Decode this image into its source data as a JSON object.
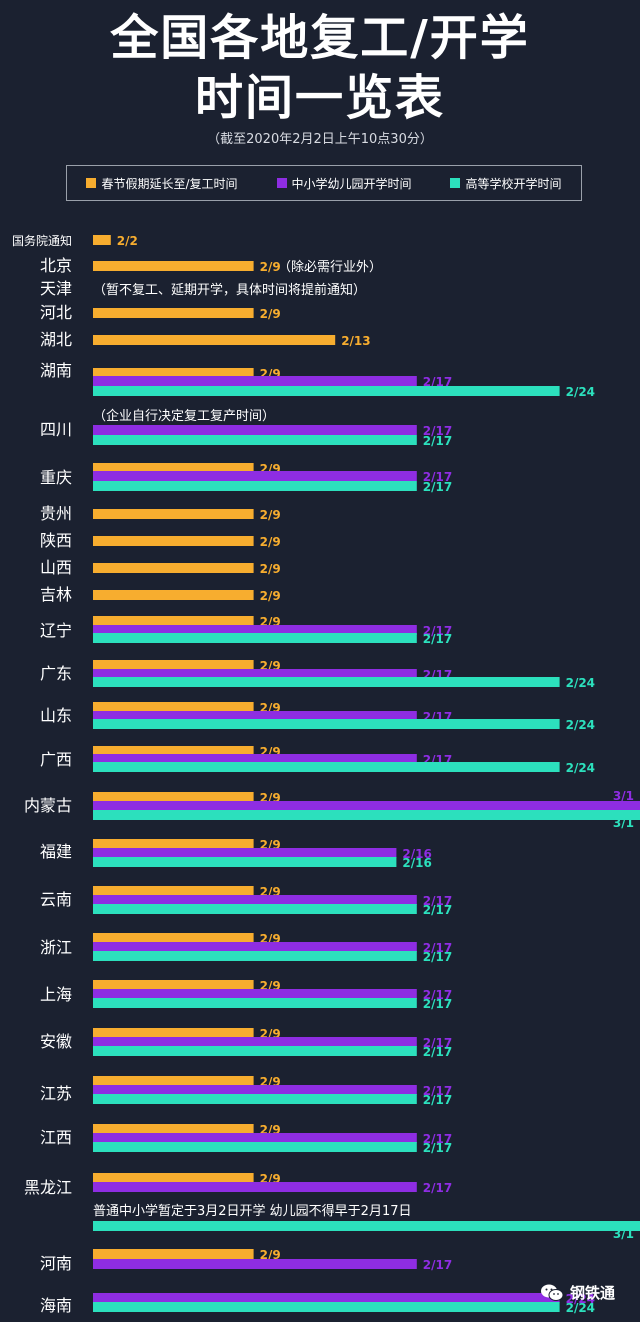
{
  "header": {
    "title_line1": "全国各地复工/开学",
    "title_line2": "时间一览表",
    "subtitle": "（截至2020年2月2日上午10点30分）"
  },
  "legend": {
    "items": [
      {
        "label": "春节假期延长至/复工时间",
        "color": "#f7ad2f"
      },
      {
        "label": "中小学幼儿园开学时间",
        "color": "#8e2de2"
      },
      {
        "label": "高等学校开学时间",
        "color": "#2ce0bd"
      }
    ]
  },
  "watermark": {
    "text": "钢铁通"
  },
  "chart_data": {
    "type": "bar",
    "orientation": "horizontal",
    "title": "全国各地复工/开学时间一览表",
    "series": [
      {
        "name": "春节假期延长至/复工时间",
        "color": "#f7ad2f"
      },
      {
        "name": "中小学幼儿园开学时间",
        "color": "#8e2de2"
      },
      {
        "name": "高等学校开学时间",
        "color": "#2ce0bd"
      }
    ],
    "rows": [
      {
        "region": "国务院通知",
        "work": "2/2",
        "k12": null,
        "college": null,
        "note": ""
      },
      {
        "region": "北京",
        "work": "2/9",
        "k12": null,
        "college": null,
        "note": "（除必需行业外）"
      },
      {
        "region": "天津",
        "work": null,
        "k12": null,
        "college": null,
        "note": "（暂不复工、延期开学，具体时间将提前通知）"
      },
      {
        "region": "河北",
        "work": "2/9",
        "k12": null,
        "college": null,
        "note": ""
      },
      {
        "region": "湖北",
        "work": "2/13",
        "k12": null,
        "college": null,
        "note": ""
      },
      {
        "region": "湖南",
        "work": "2/9",
        "k12": "2/17",
        "college": "2/24",
        "note": ""
      },
      {
        "region": "四川",
        "work": null,
        "k12": "2/17",
        "college": "2/17",
        "note": "（企业自行决定复工复产时间）"
      },
      {
        "region": "重庆",
        "work": "2/9",
        "k12": "2/17",
        "college": "2/17",
        "note": ""
      },
      {
        "region": "贵州",
        "work": "2/9",
        "k12": null,
        "college": null,
        "note": ""
      },
      {
        "region": "陕西",
        "work": "2/9",
        "k12": null,
        "college": null,
        "note": ""
      },
      {
        "region": "山西",
        "work": "2/9",
        "k12": null,
        "college": null,
        "note": ""
      },
      {
        "region": "吉林",
        "work": "2/9",
        "k12": null,
        "college": null,
        "note": ""
      },
      {
        "region": "辽宁",
        "work": "2/9",
        "k12": "2/17",
        "college": "2/17",
        "note": ""
      },
      {
        "region": "广东",
        "work": "2/9",
        "k12": "2/17",
        "college": "2/24",
        "note": ""
      },
      {
        "region": "山东",
        "work": "2/9",
        "k12": "2/17",
        "college": "2/24",
        "note": ""
      },
      {
        "region": "广西",
        "work": "2/9",
        "k12": "2/17",
        "college": "2/24",
        "note": ""
      },
      {
        "region": "内蒙古",
        "work": "2/9",
        "k12": "3/1",
        "college": "3/1",
        "note": ""
      },
      {
        "region": "福建",
        "work": "2/9",
        "k12": "2/16",
        "college": "2/16",
        "note": ""
      },
      {
        "region": "云南",
        "work": "2/9",
        "k12": "2/17",
        "college": "2/17",
        "note": ""
      },
      {
        "region": "浙江",
        "work": "2/9",
        "k12": "2/17",
        "college": "2/17",
        "note": ""
      },
      {
        "region": "上海",
        "work": "2/9",
        "k12": "2/17",
        "college": "2/17",
        "note": ""
      },
      {
        "region": "安徽",
        "work": "2/9",
        "k12": "2/17",
        "college": "2/17",
        "note": ""
      },
      {
        "region": "江苏",
        "work": "2/9",
        "k12": "2/17",
        "college": "2/17",
        "note": ""
      },
      {
        "region": "江西",
        "work": "2/9",
        "k12": "2/17",
        "college": "2/17",
        "note": ""
      },
      {
        "region": "黑龙江",
        "work": "2/9",
        "k12": "2/17",
        "college": "3/1",
        "note": "普通中小学暂定于3月2日开学 幼儿园不得早于2月17日"
      },
      {
        "region": "河南",
        "work": "2/9",
        "k12": "2/17",
        "college": null,
        "note": ""
      },
      {
        "region": "海南",
        "work": null,
        "k12": "2/24",
        "college": "2/24",
        "note": ""
      }
    ]
  }
}
